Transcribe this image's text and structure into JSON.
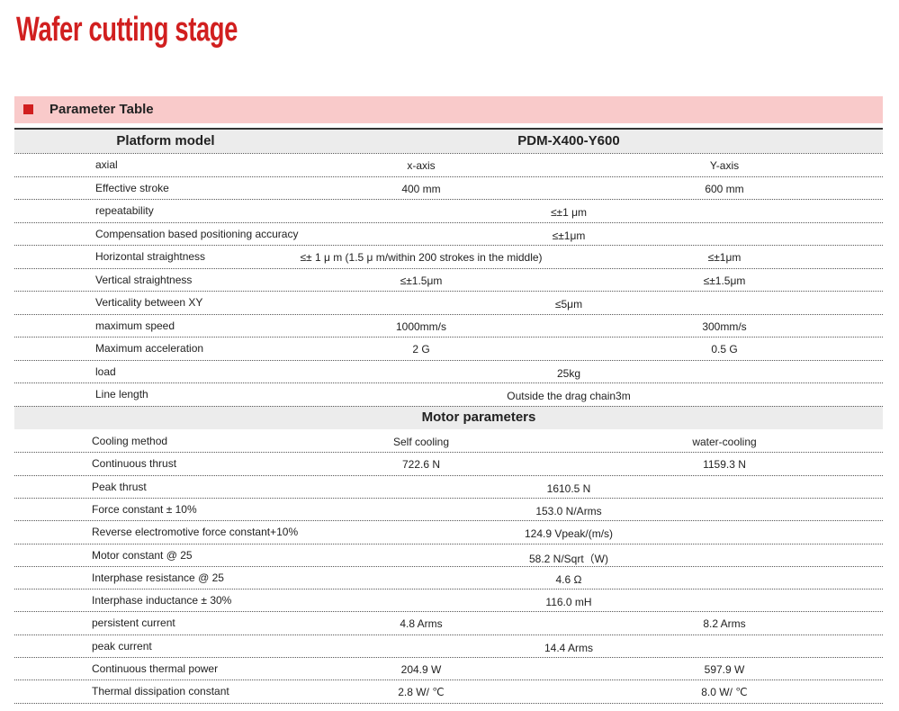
{
  "header": {
    "title": "Wafer cutting stage"
  },
  "section": {
    "title": "Parameter Table"
  },
  "table": {
    "header": [
      "Platform model",
      "PDM-X400-Y600"
    ],
    "rows": [
      {
        "label": "axial",
        "values": [
          "x-axis",
          "Y-axis"
        ]
      },
      {
        "label": "Effective stroke",
        "values": [
          "400 mm",
          "600 mm"
        ]
      },
      {
        "label": "repeatability",
        "values": [
          "≤±1 μm"
        ]
      },
      {
        "label": "Compensation based positioning accuracy",
        "values": [
          "≤±1μm"
        ]
      },
      {
        "label": "Horizontal straightness",
        "values": [
          "≤± 1 μ m (1.5 μ m/within 200 strokes in the middle)",
          "≤±1μm"
        ]
      },
      {
        "label": "Vertical straightness",
        "values": [
          "≤±1.5μm",
          "≤±1.5μm"
        ]
      },
      {
        "label": "Verticality between XY",
        "values": [
          "≤5μm"
        ]
      },
      {
        "label": "maximum speed",
        "values": [
          "1000mm/s",
          "300mm/s"
        ]
      },
      {
        "label": "Maximum acceleration",
        "values": [
          "2 G",
          "0.5 G"
        ]
      },
      {
        "label": "load",
        "values": [
          "25kg"
        ]
      },
      {
        "label": "Line length",
        "values": [
          "Outside the drag chain3m"
        ]
      }
    ],
    "motor_header": "Motor parameters",
    "motor_rows": [
      {
        "label": "Cooling method",
        "values": [
          "Self cooling",
          "water-cooling"
        ]
      },
      {
        "label": "Continuous thrust",
        "values": [
          "722.6 N",
          "1159.3 N"
        ]
      },
      {
        "label": "Peak thrust",
        "values": [
          "1610.5 N"
        ]
      },
      {
        "label": "Force constant ± 10%",
        "values": [
          "153.0 N/Arms"
        ]
      },
      {
        "label": "Reverse electromotive force constant+10%",
        "values": [
          "124.9 Vpeak/(m/s)"
        ]
      },
      {
        "label": "Motor constant @ 25",
        "values": [
          "58.2 N/Sqrt（W)"
        ]
      },
      {
        "label": "Interphase resistance @ 25",
        "values": [
          "4.6 Ω"
        ]
      },
      {
        "label": "Interphase inductance ± 30%",
        "values": [
          "116.0 mH"
        ]
      },
      {
        "label": "persistent current",
        "values": [
          "4.8 Arms",
          "8.2 Arms"
        ]
      },
      {
        "label": "peak current",
        "values": [
          "14.4 Arms"
        ]
      },
      {
        "label": "Continuous thermal power",
        "values": [
          "204.9 W",
          "597.9 W"
        ]
      },
      {
        "label": "Thermal dissipation constant",
        "values": [
          "2.8 W/ ℃",
          "8.0 W/ ℃"
        ]
      }
    ]
  }
}
